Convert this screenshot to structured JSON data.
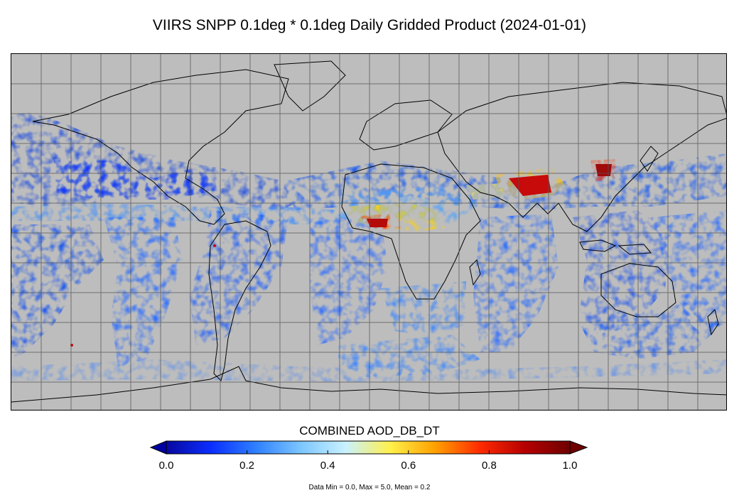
{
  "title": "VIIRS SNPP 0.1deg * 0.1deg Daily Gridded Product (2024-01-01)",
  "colorbar": {
    "label": "COMBINED AOD_DB_DT",
    "min": 0.0,
    "max": 1.0,
    "ticks": [
      "0.0",
      "0.2",
      "0.4",
      "0.6",
      "0.8",
      "1.0"
    ],
    "colormap": [
      "#08089e",
      "#0a2eff",
      "#2f80ff",
      "#7cc6ff",
      "#c9f1ff",
      "#fff04a",
      "#ffa000",
      "#ff2a00",
      "#b50000",
      "#6e0000"
    ],
    "extend": "both"
  },
  "stats_text": "Data Min = 0.0, Max = 5.0, Mean = 0.2",
  "map": {
    "background_color": "#bdbdbd",
    "grid": true,
    "high_aod_regions": [
      "Indo-Gangetic Plain",
      "West Africa (Sahel)",
      "North China Plain"
    ]
  }
}
